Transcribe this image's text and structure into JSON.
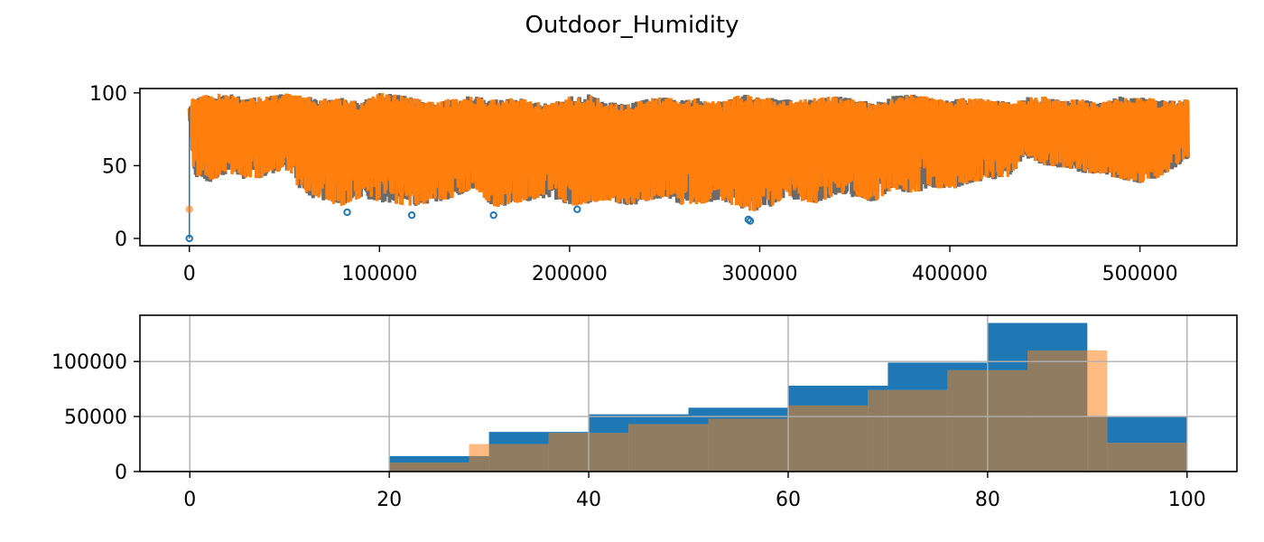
{
  "figure": {
    "title": "Outdoor_Humidity"
  },
  "chart_data": [
    {
      "type": "line",
      "panel": "top",
      "xlim": [
        -26000,
        551000
      ],
      "ylim": [
        -5,
        103
      ],
      "xticks": [
        0,
        100000,
        200000,
        300000,
        400000,
        500000
      ],
      "yticks": [
        0,
        50,
        100
      ],
      "grid": false,
      "series": [
        {
          "color": "#1f77b4",
          "markers_low": [
            {
              "x": 0,
              "y": 0
            },
            {
              "x": 83000,
              "y": 18
            },
            {
              "x": 117000,
              "y": 16
            },
            {
              "x": 160000,
              "y": 16
            },
            {
              "x": 204000,
              "y": 20
            },
            {
              "x": 294000,
              "y": 13
            },
            {
              "x": 295000,
              "y": 12
            }
          ]
        },
        {
          "color": "#ff7f0e",
          "markers_low": [
            {
              "x": 0,
              "y": 20
            }
          ]
        }
      ],
      "trend": {
        "x": [
          0,
          2000,
          10000,
          20000,
          30000,
          40000,
          50000,
          60000,
          70000,
          80000,
          90000,
          100000,
          110000,
          120000,
          130000,
          140000,
          150000,
          160000,
          170000,
          180000,
          190000,
          200000,
          210000,
          220000,
          230000,
          240000,
          250000,
          260000,
          270000,
          280000,
          290000,
          300000,
          310000,
          320000,
          330000,
          340000,
          350000,
          360000,
          370000,
          380000,
          390000,
          400000,
          410000,
          420000,
          430000,
          440000,
          450000,
          460000,
          470000,
          480000,
          490000,
          500000,
          510000,
          520000,
          525000
        ],
        "upper": [
          93,
          97,
          99,
          100,
          96,
          98,
          100,
          98,
          96,
          97,
          94,
          100,
          99,
          96,
          94,
          97,
          98,
          96,
          97,
          95,
          93,
          98,
          99,
          94,
          92,
          96,
          98,
          95,
          97,
          94,
          99,
          98,
          96,
          95,
          97,
          98,
          96,
          94,
          98,
          99,
          97,
          95,
          98,
          96,
          94,
          97,
          98,
          95,
          96,
          94,
          98,
          97,
          96,
          95,
          96
        ],
        "lower": [
          80,
          42,
          38,
          45,
          40,
          42,
          48,
          30,
          25,
          22,
          28,
          25,
          23,
          22,
          25,
          28,
          35,
          20,
          24,
          26,
          28,
          22,
          24,
          26,
          22,
          25,
          28,
          22,
          24,
          26,
          20,
          18,
          25,
          26,
          24,
          30,
          28,
          25,
          34,
          30,
          35,
          33,
          38,
          40,
          42,
          55,
          50,
          48,
          45,
          44,
          40,
          38,
          42,
          50,
          55
        ]
      }
    },
    {
      "type": "bar",
      "panel": "bottom",
      "subtype": "histogram",
      "xlim": [
        -5,
        105
      ],
      "ylim": [
        0,
        142000
      ],
      "xticks": [
        0,
        20,
        40,
        60,
        80,
        100
      ],
      "yticks": [
        0,
        50000,
        100000
      ],
      "grid": true,
      "series": [
        {
          "color": "#1f77b4",
          "opacity": 1.0,
          "bins": [
            {
              "x0": 0,
              "x1": 10,
              "value": 0
            },
            {
              "x0": 10,
              "x1": 20,
              "value": 0
            },
            {
              "x0": 20,
              "x1": 30,
              "value": 14000
            },
            {
              "x0": 30,
              "x1": 40,
              "value": 36000
            },
            {
              "x0": 40,
              "x1": 50,
              "value": 52000
            },
            {
              "x0": 50,
              "x1": 60,
              "value": 58000
            },
            {
              "x0": 60,
              "x1": 70,
              "value": 78000
            },
            {
              "x0": 70,
              "x1": 80,
              "value": 99000
            },
            {
              "x0": 80,
              "x1": 90,
              "value": 135000
            },
            {
              "x0": 90,
              "x1": 100,
              "value": 50000
            }
          ]
        },
        {
          "color": "#ffbb82",
          "opacity": 0.9,
          "bins": [
            {
              "x0": 20,
              "x1": 28,
              "value": 8000
            },
            {
              "x0": 28,
              "x1": 36,
              "value": 25000
            },
            {
              "x0": 36,
              "x1": 44,
              "value": 35000
            },
            {
              "x0": 44,
              "x1": 52,
              "value": 43000
            },
            {
              "x0": 52,
              "x1": 60,
              "value": 48000
            },
            {
              "x0": 60,
              "x1": 68,
              "value": 60000
            },
            {
              "x0": 68,
              "x1": 76,
              "value": 74000
            },
            {
              "x0": 76,
              "x1": 84,
              "value": 92000
            },
            {
              "x0": 84,
              "x1": 92,
              "value": 110000
            },
            {
              "x0": 92,
              "x1": 100,
              "value": 26000
            }
          ]
        }
      ],
      "overlap_color": "#8f7c61"
    }
  ]
}
